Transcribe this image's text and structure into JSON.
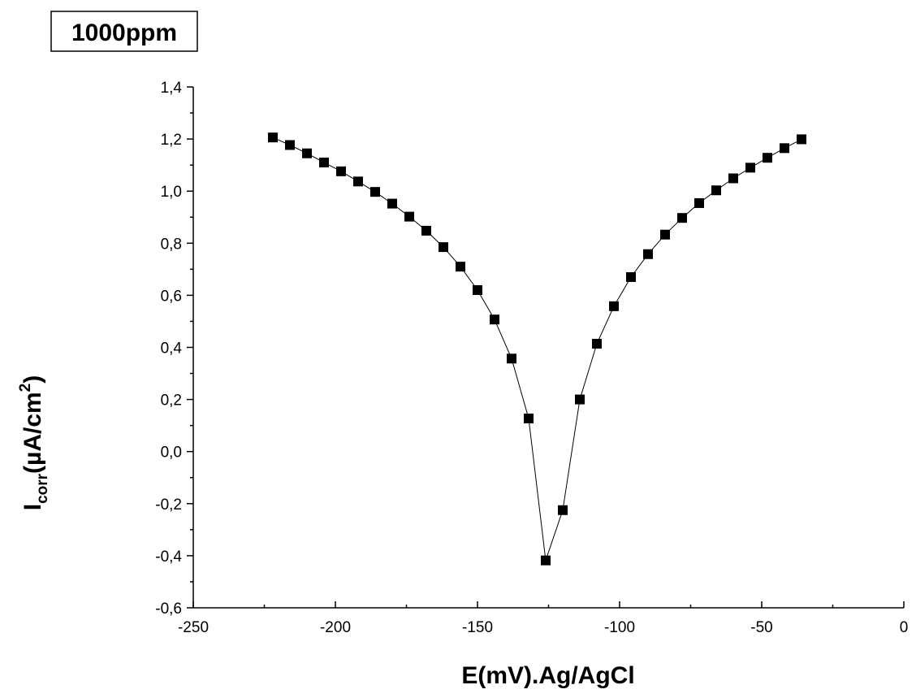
{
  "chart_data": {
    "type": "scatter",
    "annotation": "1000ppm",
    "xlabel": "E(mV).Ag/AgCl",
    "ylabel": {
      "main": "I",
      "sub": "corr",
      "unit_before": "(µA/cm",
      "sup": "2",
      "unit_after": ")"
    },
    "xlim": [
      -250,
      0
    ],
    "ylim": [
      -0.6,
      1.4
    ],
    "xticks": [
      -250,
      -200,
      -150,
      -100,
      -50,
      0
    ],
    "xtick_labels": [
      "-250",
      "-200",
      "-150",
      "-100",
      "-50",
      "0"
    ],
    "yticks": [
      -0.6,
      -0.4,
      -0.2,
      0.0,
      0.2,
      0.4,
      0.6,
      0.8,
      1.0,
      1.2,
      1.4
    ],
    "ytick_labels": [
      "-0,6",
      "-0,4",
      "-0,2",
      "0,0",
      "0,2",
      "0,4",
      "0,6",
      "0,8",
      "1,0",
      "1,2",
      "1,4"
    ],
    "grid": false,
    "marker": "square",
    "connected": true,
    "series": [
      {
        "color": "#000000",
        "x": [
          -222,
          -216,
          -210,
          -204,
          -198,
          -192,
          -186,
          -180,
          -174,
          -168,
          -162,
          -156,
          -150,
          -144,
          -138,
          -132,
          -126,
          -120,
          -114,
          -108,
          -102,
          -96,
          -90,
          -84,
          -78,
          -72,
          -66,
          -60,
          -54,
          -48,
          -42,
          -36
        ],
        "y": [
          1.206,
          1.177,
          1.145,
          1.11,
          1.076,
          1.037,
          0.997,
          0.952,
          0.902,
          0.848,
          0.785,
          0.71,
          0.62,
          0.507,
          0.357,
          0.127,
          -0.418,
          -0.225,
          0.2,
          0.414,
          0.558,
          0.67,
          0.758,
          0.833,
          0.897,
          0.954,
          1.003,
          1.049,
          1.09,
          1.128,
          1.165,
          1.199
        ]
      }
    ]
  }
}
